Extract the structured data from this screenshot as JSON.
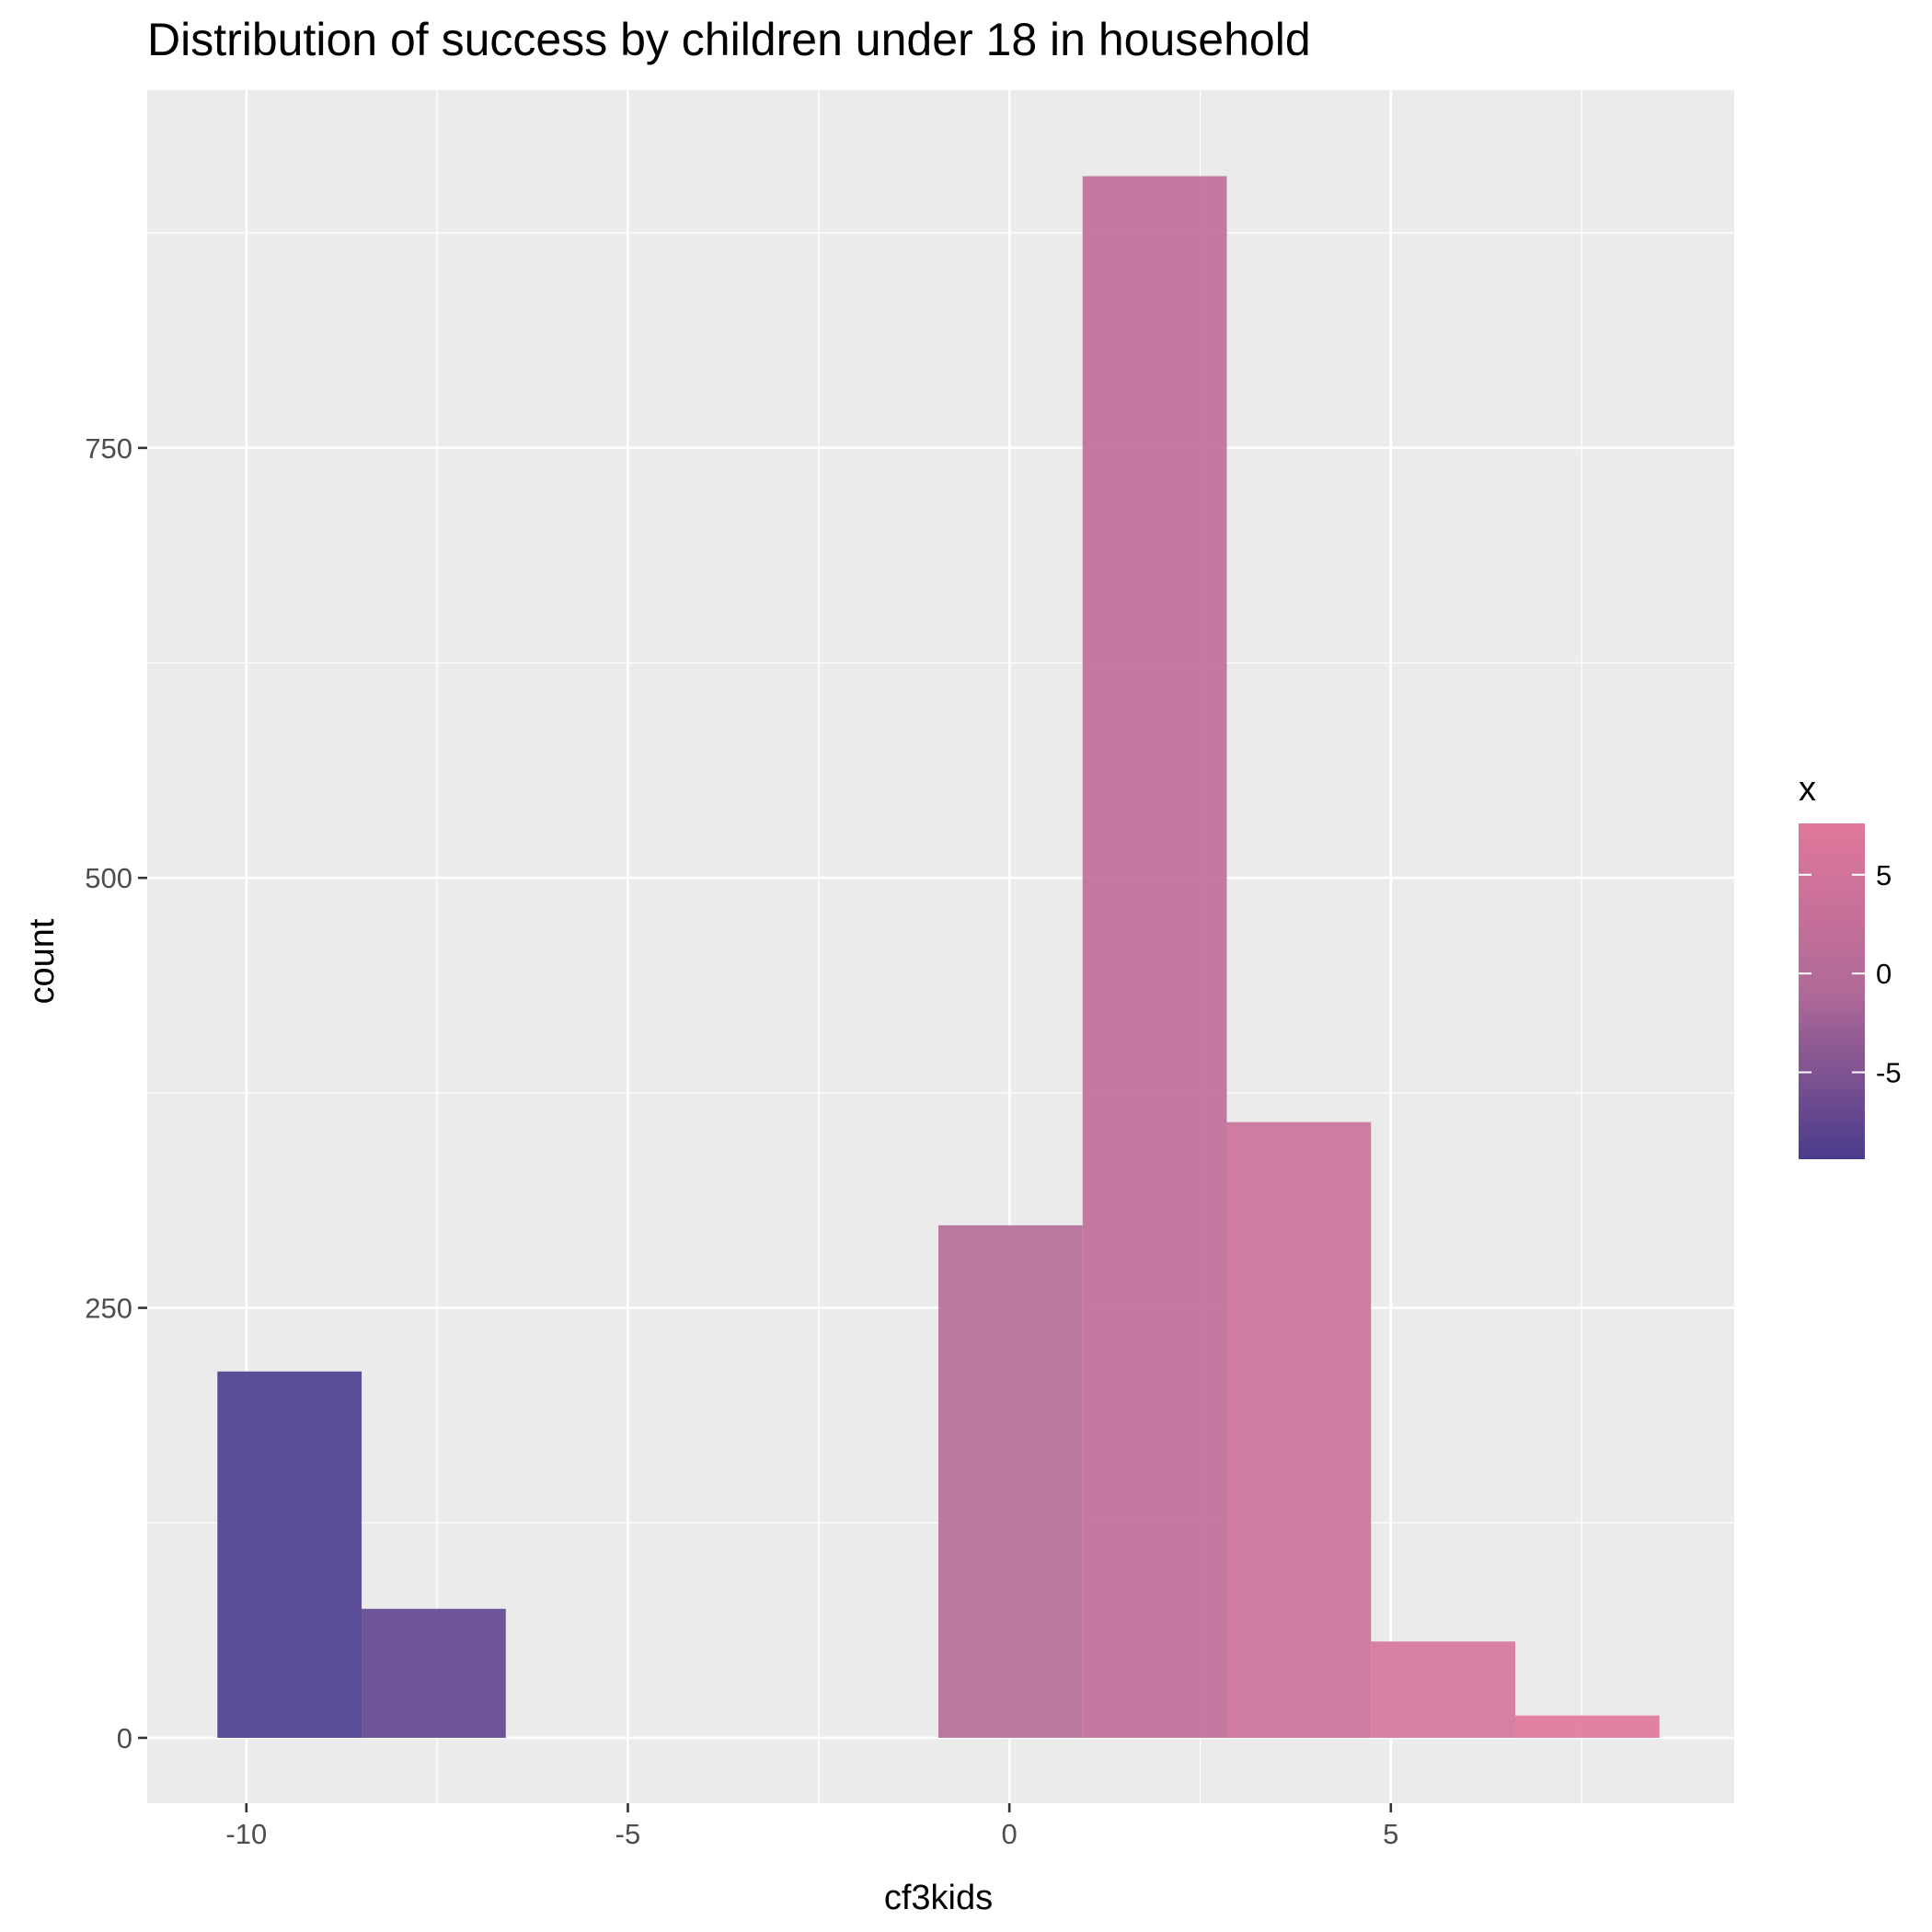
{
  "chart_data": {
    "type": "bar",
    "subtype": "histogram",
    "title": "Distribution of success by children under 18 in household",
    "xlabel": "cf3kids",
    "ylabel": "count",
    "xlim": [
      -11.3,
      9.5
    ],
    "ylim": [
      -38,
      958
    ],
    "x_ticks": [
      -10,
      -5,
      0,
      5
    ],
    "x_tick_labels": [
      "-10",
      "-5",
      "0",
      "5"
    ],
    "y_ticks": [
      0,
      250,
      500,
      750
    ],
    "y_tick_labels": [
      "0",
      "250",
      "500",
      "750"
    ],
    "bins": [
      {
        "x0": -10.38,
        "x1": -8.49,
        "count": 213
      },
      {
        "x0": -8.49,
        "x1": -6.6,
        "count": 75
      },
      {
        "x0": -6.6,
        "x1": -4.71,
        "count": 0
      },
      {
        "x0": -4.71,
        "x1": -2.82,
        "count": 0
      },
      {
        "x0": -2.82,
        "x1": -0.93,
        "count": 0
      },
      {
        "x0": -0.93,
        "x1": 0.96,
        "count": 298
      },
      {
        "x0": 0.96,
        "x1": 2.85,
        "count": 908
      },
      {
        "x0": 2.85,
        "x1": 4.74,
        "count": 358
      },
      {
        "x0": 4.74,
        "x1": 6.63,
        "count": 56
      },
      {
        "x0": 6.63,
        "x1": 8.52,
        "count": 13
      }
    ],
    "fill_scale": {
      "low_color": "#4a3b8c",
      "mid_color": "#b06a97",
      "high_color": "#e0779b",
      "low_value": -9.4,
      "high_value": 7.6
    },
    "legend": {
      "title": "x",
      "position": "right",
      "tick_values": [
        5,
        0,
        -5
      ],
      "tick_labels": [
        "5",
        "0",
        "-5"
      ]
    },
    "grid": true,
    "panel_background": "#ebebeb",
    "grid_color": "#ffffff"
  }
}
